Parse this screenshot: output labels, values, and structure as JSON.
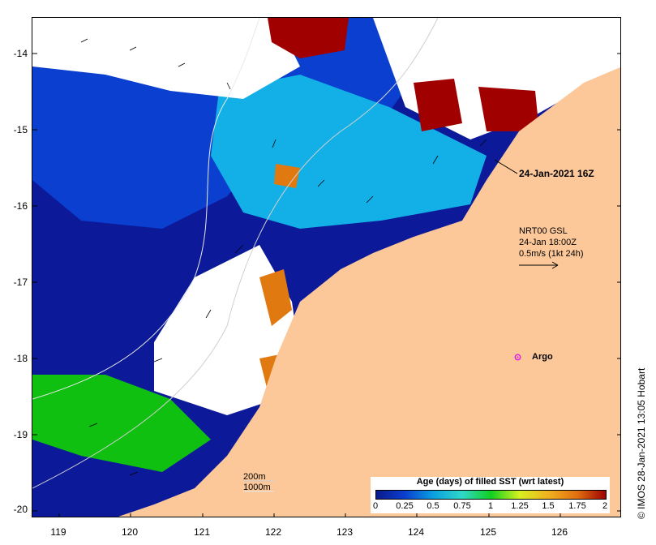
{
  "map": {
    "lat_labels": [
      "-14",
      "-15",
      "-16",
      "-17",
      "-18",
      "-19",
      "-20"
    ],
    "lon_labels": [
      "119",
      "120",
      "121",
      "122",
      "123",
      "124",
      "125",
      "126"
    ],
    "colors": {
      "land": "#fcc899",
      "no_data": "#ffffff",
      "ocean_deep": "#0c1a9a",
      "ocean_mid": "#0a3fd0"
    }
  },
  "annotations": {
    "timestamp": "24-Jan-2021 16Z",
    "vector_legend": {
      "line1": "NRT00 GSL",
      "line2": "24-Jan 18:00Z",
      "line3": "0.5m/s (1kt 24h)"
    },
    "argo_label": "Argo"
  },
  "contour_legend": {
    "line1": "200m",
    "line2": "1000m"
  },
  "colorbar": {
    "title": "Age (days) of filled SST (wrt latest)",
    "ticks": [
      "0",
      "0.25",
      "0.5",
      "0.75",
      "1",
      "1.25",
      "1.5",
      "1.75",
      "2"
    ],
    "colors": [
      "#0a1a8a",
      "#0a3fd0",
      "#0aa0e0",
      "#30d8c8",
      "#10d020",
      "#d8f020",
      "#f0b020",
      "#e07010",
      "#a00000"
    ]
  },
  "credit": "© IMOS 28-Jan-2021 13:05 Hobart"
}
